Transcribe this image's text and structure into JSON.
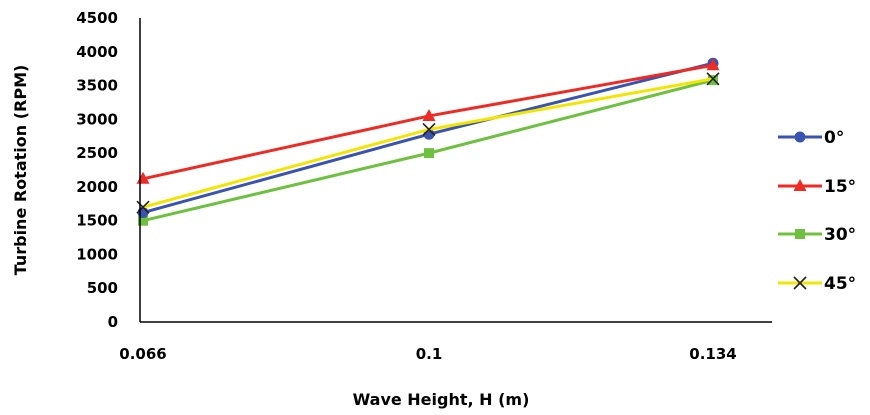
{
  "chart_data": {
    "type": "line",
    "title": "",
    "xlabel": "Wave Height, H (m)",
    "ylabel": "Turbine Rotation (RPM)",
    "categories": [
      "0.066",
      "0.1",
      "0.134"
    ],
    "ylim": [
      0,
      4500
    ],
    "yticks": [
      0,
      500,
      1000,
      1500,
      2000,
      2500,
      3000,
      3500,
      4000,
      4500
    ],
    "grid": false,
    "legend_position": "right",
    "series": [
      {
        "name": "0°",
        "values": [
          1620,
          2780,
          3830
        ],
        "color": "#3853b0",
        "marker": "circle"
      },
      {
        "name": "15°",
        "values": [
          2120,
          3050,
          3800
        ],
        "color": "#ee2a24",
        "marker": "triangle"
      },
      {
        "name": "30°",
        "values": [
          1500,
          2500,
          3580
        ],
        "color": "#6ec13e",
        "marker": "square"
      },
      {
        "name": "45°",
        "values": [
          1700,
          2850,
          3600
        ],
        "color": "#f2e600",
        "marker": "x"
      }
    ]
  }
}
